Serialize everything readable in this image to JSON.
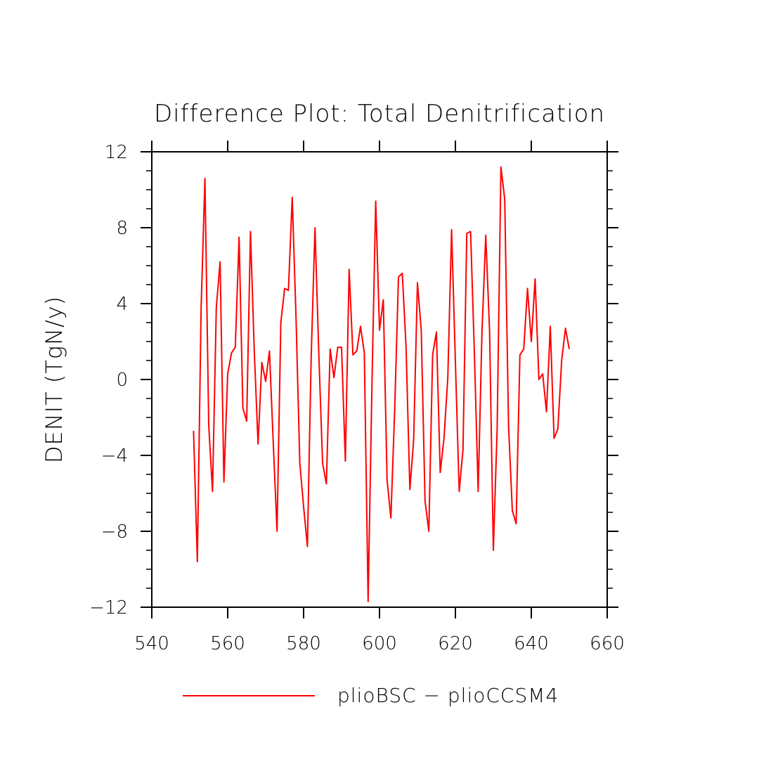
{
  "chart_data": {
    "type": "line",
    "title": "Difference Plot: Total Denitrification",
    "xlabel": "",
    "ylabel": "DENIT  (TgN/y)",
    "xlim": [
      540,
      660
    ],
    "ylim": [
      -12,
      12
    ],
    "xticks": [
      540,
      560,
      580,
      600,
      620,
      640,
      660
    ],
    "yticks": [
      -12,
      -8,
      -4,
      0,
      4,
      8,
      12
    ],
    "xtick_labels": [
      "540",
      "560",
      "580",
      "600",
      "620",
      "640",
      "660"
    ],
    "ytick_labels": [
      "−12",
      "−8",
      "−4",
      "0",
      "4",
      "8",
      "12"
    ],
    "grid": false,
    "legend_position": "bottom",
    "series": [
      {
        "name": "plioBSC − plioCCSM4",
        "color": "#ff0000",
        "x": [
          551,
          552,
          553,
          554,
          555,
          556,
          557,
          558,
          559,
          560,
          561,
          562,
          563,
          564,
          565,
          566,
          567,
          568,
          569,
          570,
          571,
          572,
          573,
          574,
          575,
          576,
          577,
          578,
          579,
          580,
          581,
          582,
          583,
          584,
          585,
          586,
          587,
          588,
          589,
          590,
          591,
          592,
          593,
          594,
          595,
          596,
          597,
          598,
          599,
          600,
          601,
          602,
          603,
          604,
          605,
          606,
          607,
          608,
          609,
          610,
          611,
          612,
          613,
          614,
          615,
          616,
          617,
          618,
          619,
          620,
          621,
          622,
          623,
          624,
          625,
          626,
          627,
          628,
          629,
          630,
          631,
          632,
          633,
          634,
          635,
          636,
          637,
          638,
          639,
          640,
          641,
          642,
          643,
          644,
          645,
          646,
          647,
          648,
          649,
          650
        ],
        "y": [
          -2.7,
          -9.6,
          3.8,
          10.6,
          -2.4,
          -5.9,
          3.8,
          6.2,
          -5.4,
          0.3,
          1.4,
          1.7,
          7.5,
          -1.5,
          -2.2,
          7.8,
          1.5,
          -3.4,
          0.9,
          -0.1,
          1.5,
          -3.3,
          -8.0,
          3.0,
          4.8,
          4.7,
          9.6,
          3.3,
          -4.4,
          -6.7,
          -8.8,
          1.2,
          8.0,
          1.4,
          -4.4,
          -5.5,
          1.6,
          0.1,
          1.7,
          1.7,
          -4.3,
          5.8,
          1.3,
          1.5,
          2.8,
          1.4,
          -11.7,
          -0.4,
          9.4,
          2.6,
          4.2,
          -5.3,
          -7.3,
          -1.6,
          5.4,
          5.6,
          1.7,
          -5.8,
          -3.2,
          5.1,
          2.6,
          -6.4,
          -8.0,
          1.3,
          2.5,
          -4.9,
          -3.1,
          0.1,
          7.9,
          0.9,
          -5.9,
          -3.7,
          7.7,
          7.8,
          1.4,
          -5.9,
          2.5,
          7.6,
          2.6,
          -9.0,
          -2.6,
          11.2,
          9.5,
          -2.4,
          -6.9,
          -7.6,
          1.3,
          1.6,
          4.8,
          2.0,
          5.3,
          0.0,
          0.3,
          -1.7,
          2.8,
          -3.1,
          -2.6,
          1.0,
          2.7,
          1.6
        ]
      }
    ]
  }
}
